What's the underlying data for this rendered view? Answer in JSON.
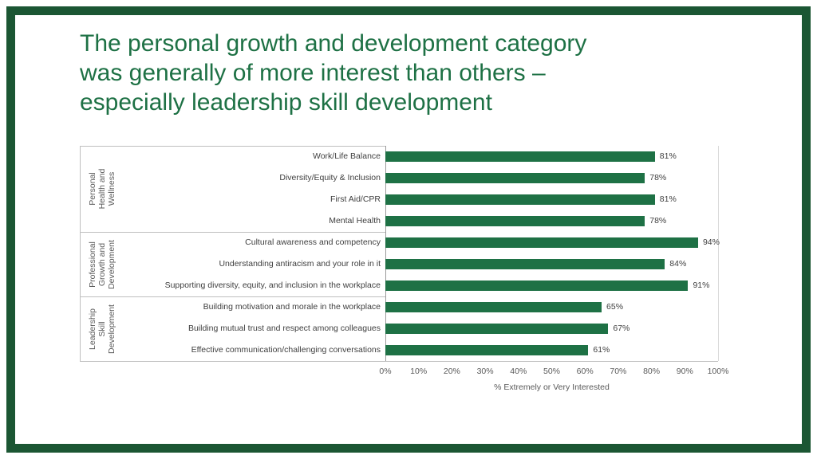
{
  "slide": {
    "title_lines": [
      "The personal growth and development category",
      "was generally of more interest than others –",
      "especially leadership skill development"
    ]
  },
  "chart_data": {
    "type": "bar",
    "orientation": "horizontal",
    "title": "",
    "xlabel": "% Extremely or Very Interested",
    "xlim": [
      0,
      100
    ],
    "x_ticks": [
      "0%",
      "10%",
      "20%",
      "30%",
      "40%",
      "50%",
      "60%",
      "70%",
      "80%",
      "90%",
      "100%"
    ],
    "bar_color": "#1E7145",
    "grid": "off",
    "legend": "none",
    "groups": [
      {
        "label": "Personal Health and Wellness",
        "items": [
          {
            "category": "Work/Life Balance",
            "value": 81,
            "label": "81%"
          },
          {
            "category": "Diversity/Equity & Inclusion",
            "value": 78,
            "label": "78%"
          },
          {
            "category": "First Aid/CPR",
            "value": 81,
            "label": "81%"
          },
          {
            "category": "Mental Health",
            "value": 78,
            "label": "78%"
          }
        ]
      },
      {
        "label": "Professional Growth and Development",
        "items": [
          {
            "category": "Cultural awareness and competency",
            "value": 94,
            "label": "94%"
          },
          {
            "category": "Understanding antiracism and your role in it",
            "value": 84,
            "label": "84%"
          },
          {
            "category": "Supporting diversity, equity, and inclusion in the workplace",
            "value": 91,
            "label": "91%"
          }
        ]
      },
      {
        "label": "Leadership Skill Development",
        "items": [
          {
            "category": "Building motivation and morale in the workplace",
            "value": 65,
            "label": "65%"
          },
          {
            "category": "Building mutual trust and respect among colleagues",
            "value": 67,
            "label": "67%"
          },
          {
            "category": "Effective communication/challenging conversations",
            "value": 61,
            "label": "61%"
          }
        ]
      }
    ]
  }
}
